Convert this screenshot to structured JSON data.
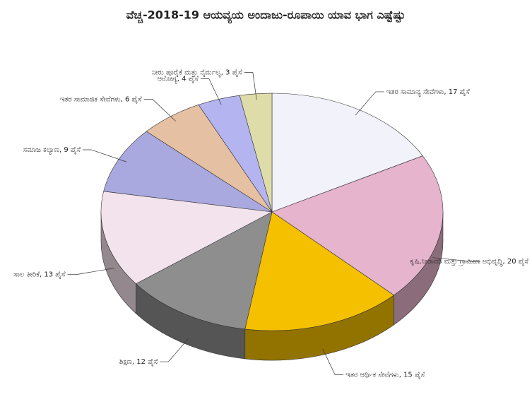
{
  "chart_data": {
    "type": "pie3d",
    "title": "ವೆಚ್ಚ-2018-19 ಆಯವ್ಯಯ ಅಂದಾಜು-ರೂಪಾಯಿ ಯಾವ ಭಾಗ ಎಷ್ಟೆಷ್ಟು",
    "values": [
      17,
      20,
      15,
      12,
      13,
      9,
      6,
      4,
      3
    ],
    "value_labels": [
      "ಇತರ ಸಾಮಾನ್ಯ ಸೇವೆಗಳು, 17 ಪೈಸೆ",
      "ಕೃಷಿ,ನೀರಾವರಿ ಮತ್ತು ಗ್ರಾಮೀಣ ಅಭಿವೃದ್ಧಿ, 20 ಪೈಸೆ",
      "ಇತರ ಆರ್ಥಿಕ ಸೇವೆಗಳು, 15 ಪೈಸೆ",
      "ಶಿಕ್ಷಣ, 12 ಪೈಸೆ",
      "ಸಾಲ ತೀರಿಕೆ, 13 ಪೈಸೆ",
      "ಸಮಾಜ ಕಲ್ಯಾಣ, 9 ಪೈಸೆ",
      "ಇತರ ಸಾಮಾಜಿಕ ಸೇವೆಗಳು, 6 ಪೈಸೆ",
      "ಆರೋಗ್ಯ, 4 ಪೈಸೆ",
      "ನೀರು ಪೂರೈಕೆ ಮತ್ತು ನೈರ್ಮಲ್ಯ, 3 ಪೈಸೆ"
    ],
    "colors": [
      "#f2f2fb",
      "#e6b4cc",
      "#f5c000",
      "#8e8e8e",
      "#f3e3ec",
      "#a9a9df",
      "#e6c0a2",
      "#b4b4f0",
      "#deddaa"
    ]
  }
}
